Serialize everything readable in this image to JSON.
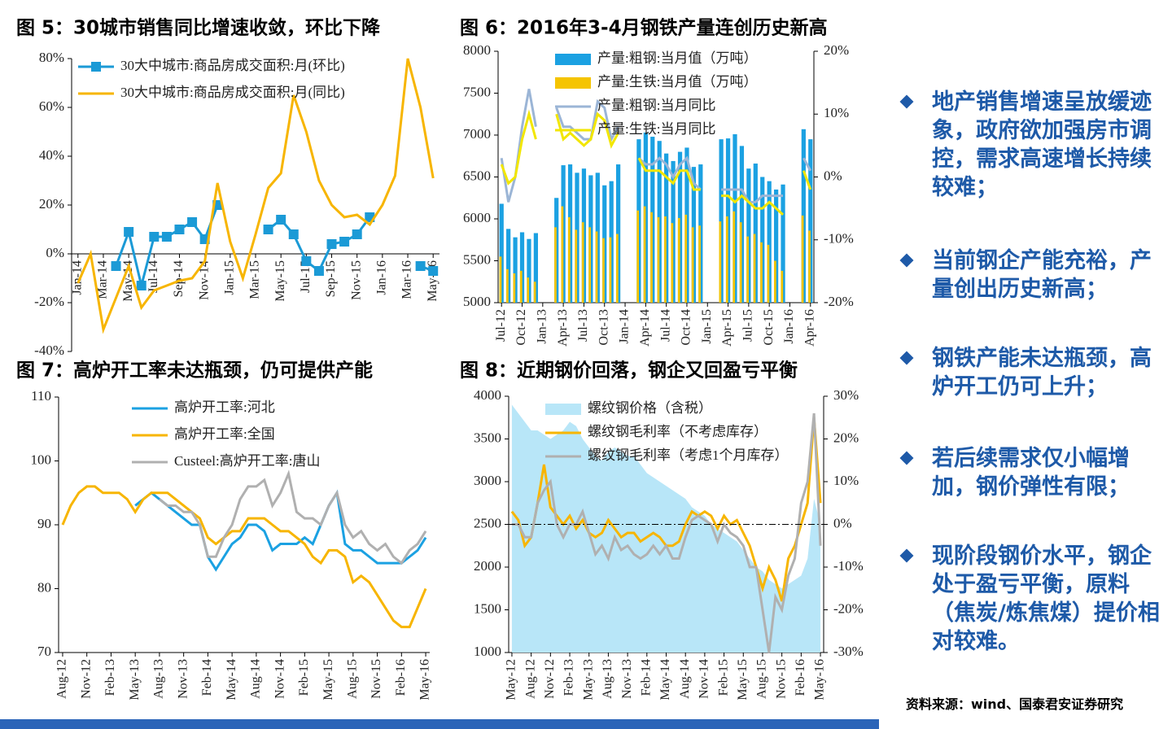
{
  "chart_data": [
    {
      "type": "line",
      "title": "图 5：30城市销售同比增速收敛，环比下降",
      "legend": "upper left",
      "zero_line": "solid",
      "categories": [
        "Jan-14",
        null,
        "Mar-14",
        null,
        "May-14",
        null,
        "Jul-14",
        null,
        "Sep-14",
        null,
        "Nov-14",
        null,
        "Jan-15",
        null,
        "Mar-15",
        null,
        "May-15",
        null,
        "Jul-15",
        null,
        "Sep-15",
        null,
        "Nov-15",
        null,
        "Jan-16",
        null,
        "Mar-16",
        null,
        "May-16"
      ],
      "ylim": [
        -40,
        80
      ],
      "yticks": [
        {
          "value": -40,
          "label": "-40%"
        },
        {
          "value": -20,
          "label": "-20%"
        },
        {
          "value": 0,
          "label": "0%"
        },
        {
          "value": 20,
          "label": "20%"
        },
        {
          "value": 40,
          "label": "40%"
        },
        {
          "value": 60,
          "label": "60%"
        },
        {
          "value": 80,
          "label": "80%"
        }
      ],
      "series": [
        {
          "name": "30大中城市:商品房成交面积:月(环比)",
          "color": "#1b9ad6",
          "marker": "square",
          "values": [
            null,
            null,
            null,
            -5,
            9,
            -13,
            7,
            7,
            10,
            13,
            6,
            20,
            null,
            null,
            null,
            10,
            14,
            8,
            -3,
            -7,
            4,
            5,
            8,
            15,
            null,
            null,
            null,
            -5,
            -7
          ]
        },
        {
          "name": "30大中城市:商品房成交面积:月(同比)",
          "color": "#f7b500",
          "values": [
            -12,
            0,
            -31,
            -18,
            -5,
            -22,
            -15,
            -13,
            -11,
            -10,
            -3,
            29,
            5,
            -10,
            8,
            27,
            33,
            65,
            50,
            30,
            20,
            15,
            16,
            12,
            20,
            32,
            80,
            60,
            31
          ]
        }
      ]
    },
    {
      "type": "bar",
      "title": "图 6：2016年3-4月钢铁产量连创历史新高",
      "legend": "upper left",
      "categories": [
        "Jul-12",
        null,
        null,
        "Oct-12",
        null,
        null,
        "Jan-13",
        null,
        null,
        "Apr-13",
        null,
        null,
        "Jul-13",
        null,
        null,
        "Oct-13",
        null,
        null,
        "Jan-14",
        null,
        null,
        "Apr-14",
        null,
        null,
        "Jul-14",
        null,
        null,
        "Oct-14",
        null,
        null,
        "Jan-15",
        null,
        null,
        "Apr-15",
        null,
        null,
        "Jul-15",
        null,
        null,
        "Oct-15",
        null,
        null,
        "Jan-16",
        null,
        null,
        "Apr-16"
      ],
      "ylim": [
        5000,
        8000
      ],
      "yticks": [
        5000,
        5500,
        6000,
        6500,
        7000,
        7500,
        8000
      ],
      "y2lim": [
        -20,
        20
      ],
      "y2ticks": [
        {
          "value": -20,
          "label": "-20%"
        },
        {
          "value": -10,
          "label": "-10%"
        },
        {
          "value": 0,
          "label": "0%"
        },
        {
          "value": 10,
          "label": "10%"
        },
        {
          "value": 20,
          "label": "20%"
        }
      ],
      "series": [
        {
          "name": "产量:粗钢:当月值（万吨）",
          "type": "bar",
          "color": "#1ba1e2",
          "values": [
            6180,
            5880,
            5780,
            5840,
            5760,
            5830,
            null,
            null,
            6250,
            6640,
            6650,
            6550,
            6600,
            6520,
            6550,
            6400,
            6450,
            6650,
            null,
            null,
            6950,
            7030,
            6980,
            6930,
            6780,
            6690,
            6800,
            6850,
            6620,
            6650,
            null,
            null,
            6950,
            6960,
            7010,
            6870,
            6600,
            6660,
            6500,
            6450,
            6350,
            6410,
            null,
            null,
            7070,
            6950
          ]
        },
        {
          "name": "产量:生铁:当月值（万吨）",
          "type": "bar",
          "color": "#f5c400",
          "values": [
            5550,
            5400,
            5350,
            5380,
            5300,
            5250,
            null,
            null,
            5900,
            6150,
            6020,
            5870,
            5960,
            5900,
            5850,
            5770,
            5780,
            5820,
            null,
            null,
            6100,
            6150,
            6080,
            6020,
            6030,
            5950,
            6010,
            6050,
            5900,
            5920,
            null,
            null,
            5970,
            6030,
            6090,
            5960,
            5790,
            5820,
            5720,
            5690,
            5500,
            5380,
            null,
            null,
            6040,
            5860
          ]
        },
        {
          "name": "产量:粗钢:当月同比",
          "type": "line",
          "axis": "y2",
          "color": "#9bb5d6",
          "values": [
            3,
            -4,
            0,
            8,
            14,
            8,
            null,
            null,
            11,
            8,
            8,
            7,
            6,
            6,
            12,
            11,
            6,
            8,
            null,
            null,
            3,
            2,
            2,
            3,
            2,
            0,
            2,
            3,
            -1,
            -2,
            null,
            null,
            -2,
            -2,
            -2,
            -2,
            -4,
            -4,
            -3,
            -3,
            -3,
            -3,
            null,
            null,
            3,
            1
          ]
        },
        {
          "name": "产量:生铁:当月同比",
          "type": "line",
          "axis": "y2",
          "color": "#f2e600",
          "values": [
            2,
            -1,
            0,
            6,
            10,
            6,
            null,
            null,
            10,
            6,
            7,
            6,
            5,
            6,
            10,
            9,
            5,
            7,
            null,
            null,
            3,
            1,
            1,
            1,
            0,
            -1,
            1,
            1,
            -2,
            -2,
            null,
            null,
            -3,
            -3,
            -4,
            -3,
            -4,
            -5,
            -5,
            -4,
            -5,
            -6,
            null,
            null,
            1,
            -2
          ]
        }
      ]
    },
    {
      "type": "line",
      "title": "图 7：高炉开工率未达瓶颈，仍可提供产能",
      "legend": "upper left",
      "categories": [
        "Aug-12",
        null,
        null,
        "Nov-12",
        null,
        null,
        "Feb-13",
        null,
        null,
        "May-13",
        null,
        null,
        "Aug-13",
        null,
        null,
        "Nov-13",
        null,
        null,
        "Feb-14",
        null,
        null,
        "May-14",
        null,
        null,
        "Aug-14",
        null,
        null,
        "Nov-14",
        null,
        null,
        "Feb-15",
        null,
        null,
        "May-15",
        null,
        null,
        "Aug-15",
        null,
        null,
        "Nov-15",
        null,
        null,
        "Feb-16",
        null,
        null,
        "May-16"
      ],
      "ylim": [
        70,
        110
      ],
      "yticks": [
        70,
        80,
        90,
        100,
        110
      ],
      "series": [
        {
          "name": "高炉开工率:河北",
          "color": "#1ba1e2",
          "values": [
            null,
            null,
            null,
            null,
            null,
            null,
            null,
            null,
            null,
            93,
            94,
            95,
            94,
            93,
            92,
            91,
            90,
            90,
            85,
            83,
            85,
            87,
            88,
            90,
            90,
            89,
            86,
            87,
            87,
            87,
            88,
            87,
            90,
            93,
            95,
            87,
            86,
            86,
            85,
            84,
            84,
            84,
            84,
            85,
            86,
            88
          ]
        },
        {
          "name": "高炉开工率:全国",
          "color": "#f7b500",
          "values": [
            90,
            93,
            95,
            96,
            96,
            95,
            95,
            95,
            94,
            92,
            94,
            95,
            95,
            95,
            94,
            93,
            92,
            91,
            88,
            87,
            88,
            89,
            89,
            91,
            91,
            91,
            90,
            89,
            89,
            88,
            87,
            85,
            84,
            86,
            86,
            85,
            81,
            82,
            81,
            79,
            77,
            75,
            74,
            74,
            77,
            80
          ]
        },
        {
          "name": "Custeel:高炉开工率:唐山",
          "color": "#b0b0b0",
          "values": [
            null,
            null,
            null,
            null,
            null,
            null,
            null,
            null,
            null,
            null,
            null,
            null,
            94,
            93,
            93,
            92,
            92,
            90,
            85,
            85,
            88,
            90,
            94,
            96,
            96,
            97,
            93,
            95,
            98,
            92,
            91,
            91,
            90,
            93,
            95,
            90,
            88,
            89,
            87,
            86,
            87,
            85,
            84,
            86,
            87,
            89
          ]
        }
      ]
    },
    {
      "type": "area",
      "title": "图 8：近期钢价回落，钢企又回盈亏平衡",
      "legend": "upper left",
      "zero_line": "dashed",
      "categories": [
        "May-12",
        null,
        null,
        "Aug-12",
        null,
        null,
        "Nov-12",
        null,
        null,
        "Feb-13",
        null,
        null,
        "May-13",
        null,
        null,
        "Aug-13",
        null,
        null,
        "Nov-13",
        null,
        null,
        "Feb-14",
        null,
        null,
        "May-14",
        null,
        null,
        "Aug-14",
        null,
        null,
        "Nov-14",
        null,
        null,
        "Feb-15",
        null,
        null,
        "May-15",
        null,
        null,
        "Aug-15",
        null,
        null,
        "Nov-15",
        null,
        null,
        "Feb-16",
        null,
        null,
        "May-16"
      ],
      "ylim": [
        1000,
        4000
      ],
      "yticks": [
        1000,
        1500,
        2000,
        2500,
        3000,
        3500,
        4000
      ],
      "y2lim": [
        -30,
        30
      ],
      "y2ticks": [
        {
          "value": -30,
          "label": "-30%"
        },
        {
          "value": -20,
          "label": "-20%"
        },
        {
          "value": -10,
          "label": "-10%"
        },
        {
          "value": 0,
          "label": "0%"
        },
        {
          "value": 10,
          "label": "10%"
        },
        {
          "value": 20,
          "label": "20%"
        },
        {
          "value": 30,
          "label": "30%"
        }
      ],
      "series": [
        {
          "name": "螺纹钢价格（含税）",
          "type": "area",
          "color": "#b8e6f8",
          "values": [
            3900,
            3800,
            3700,
            3600,
            3600,
            3550,
            3500,
            3550,
            3600,
            3700,
            3650,
            3500,
            3400,
            3300,
            3250,
            3350,
            3400,
            3350,
            3300,
            3300,
            3200,
            3100,
            3050,
            3000,
            2950,
            2900,
            2850,
            2800,
            2700,
            2650,
            2600,
            2500,
            2450,
            2400,
            2350,
            2300,
            2200,
            2100,
            2000,
            1950,
            1850,
            1800,
            1750,
            1800,
            1850,
            1900,
            2100,
            2800,
            2500
          ]
        },
        {
          "name": "螺纹钢毛利率（不考虑库存）",
          "type": "line",
          "axis": "y2",
          "color": "#f7b500",
          "values": [
            3,
            1,
            -5,
            -3,
            5,
            14,
            4,
            2,
            0,
            2,
            -1,
            1,
            -2,
            -3,
            -2,
            1,
            -1,
            -3,
            -2,
            -2,
            -4,
            -3,
            -2,
            -3,
            -5,
            -5,
            -4,
            0,
            3,
            2,
            3,
            2,
            -1,
            2,
            0,
            1,
            -2,
            -5,
            -10,
            -15,
            -10,
            -13,
            -18,
            -8,
            -5,
            0,
            5,
            25,
            5
          ]
        },
        {
          "name": "螺纹钢毛利率（考虑1个月库存）",
          "type": "line",
          "axis": "y2",
          "color": "#b0b0b0",
          "values": [
            0,
            0,
            -3,
            -3,
            5,
            8,
            10,
            0,
            -3,
            0,
            0,
            3,
            -2,
            -7,
            -5,
            -8,
            -3,
            -6,
            -5,
            -7,
            -8,
            -7,
            -5,
            -7,
            -5,
            -8,
            -8,
            -3,
            1,
            2,
            1,
            0,
            -4,
            0,
            -2,
            -3,
            -5,
            -10,
            -10,
            -20,
            -30,
            -17,
            -20,
            -12,
            -8,
            5,
            10,
            26,
            -5
          ]
        }
      ]
    }
  ],
  "bullets": [
    "地产销售增速呈放缓迹象，政府欲加强房市调控，需求高速增长持续较难；",
    "当前钢企产能充裕，产量创出历史新高；",
    "钢铁产能未达瓶颈，高炉开工仍可上升；",
    "若后续需求仅小幅增加，钢价弹性有限；",
    "现阶段钢价水平，钢企处于盈亏平衡，原料（焦炭/炼焦煤）提价相对较难。"
  ],
  "source": "资料来源：wind、国泰君安证券研究"
}
